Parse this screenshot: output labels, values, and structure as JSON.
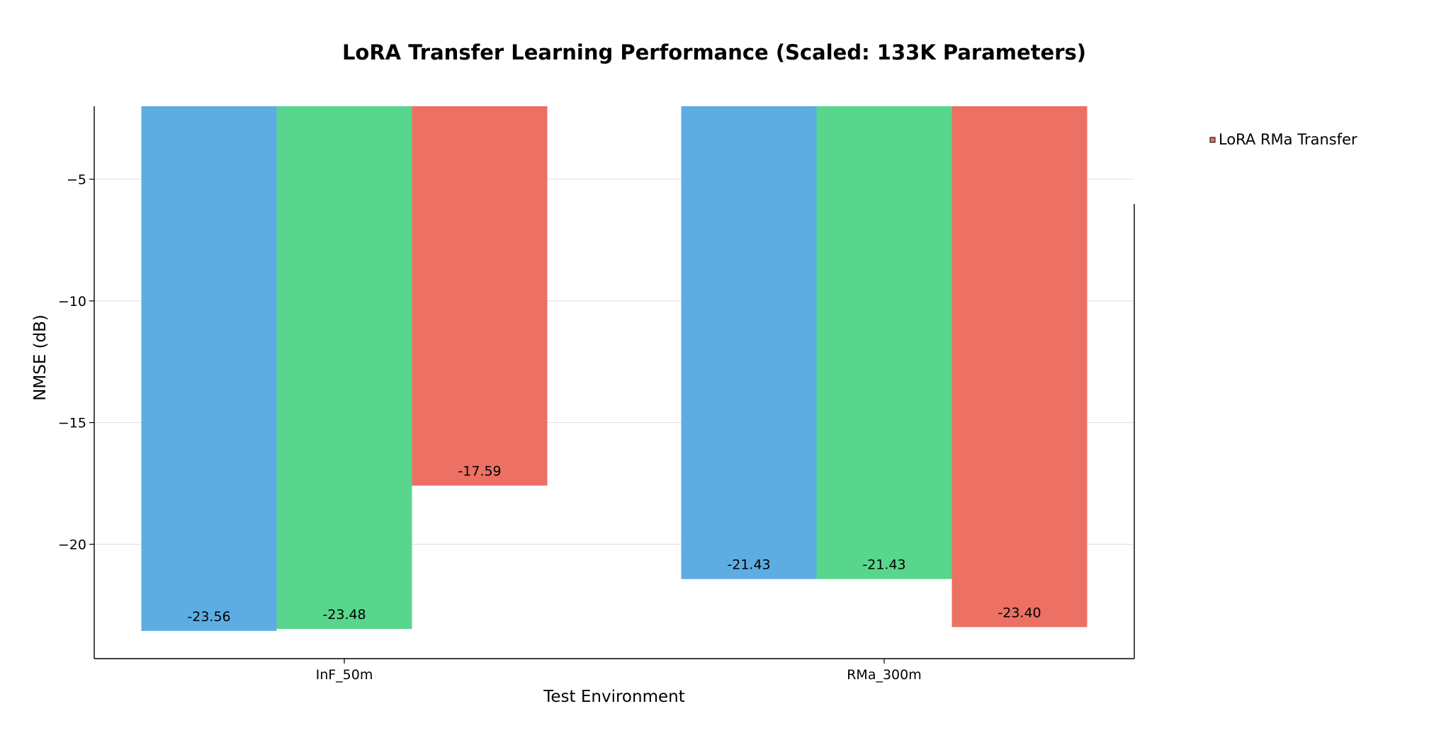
{
  "chart_data": {
    "type": "bar",
    "title": "LoRA Transfer Learning Performance (Scaled: 133K Parameters)",
    "xlabel": "Test Environment",
    "ylabel": "NMSE (dB)",
    "categories": [
      "InF_50m",
      "RMa_300m"
    ],
    "ylim": [
      -24.7,
      -2.0
    ],
    "yticks": [
      -5,
      -10,
      -15,
      -20
    ],
    "ytick_labels": [
      "−5",
      "−10",
      "−15",
      "−20"
    ],
    "grid": true,
    "legend_position": "upper-right-outside",
    "series": [
      {
        "values": [
          -23.56,
          -21.43
        ],
        "labels": [
          "-23.56",
          "-21.43"
        ],
        "color": "#5DADE2"
      },
      {
        "values": [
          -23.48,
          -21.43
        ],
        "labels": [
          "-23.48",
          "-21.43"
        ],
        "color": "#58D68D"
      },
      {
        "name": "LoRA RMa Transfer",
        "values": [
          -17.59,
          -23.4
        ],
        "labels": [
          "-17.59",
          "-23.40"
        ],
        "color": "#EC7063"
      }
    ]
  }
}
